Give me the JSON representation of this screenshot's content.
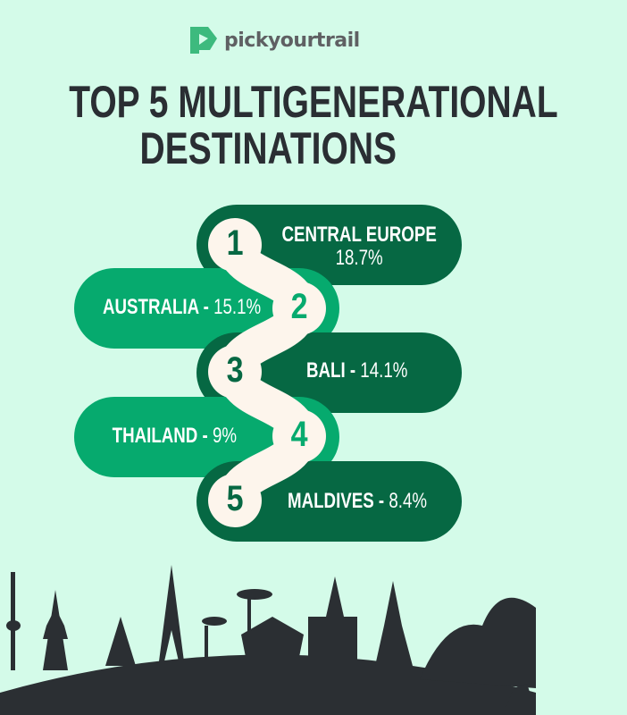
{
  "brand": {
    "name": "pickyourtrail",
    "logo_color": "#3dba7e"
  },
  "title": {
    "line1": "TOP 5 MULTIGENERATIONAL",
    "line2": "DESTINATIONS"
  },
  "colors": {
    "background": "#d4fbe9",
    "dark_green": "#066843",
    "light_green": "#06aa6e",
    "cream": "#fdf5ec",
    "text": "#2a2e33"
  },
  "ranking": [
    {
      "rank": "1",
      "name": "CENTRAL EUROPE",
      "value": "18.7%"
    },
    {
      "rank": "2",
      "name": "AUSTRALIA - ",
      "value": "15.1%"
    },
    {
      "rank": "3",
      "name": "BALI - ",
      "value": "14.1%"
    },
    {
      "rank": "4",
      "name": "THAILAND - ",
      "value": "9%"
    },
    {
      "rank": "5",
      "name": "MALDIVES - ",
      "value": "8.4%"
    }
  ]
}
